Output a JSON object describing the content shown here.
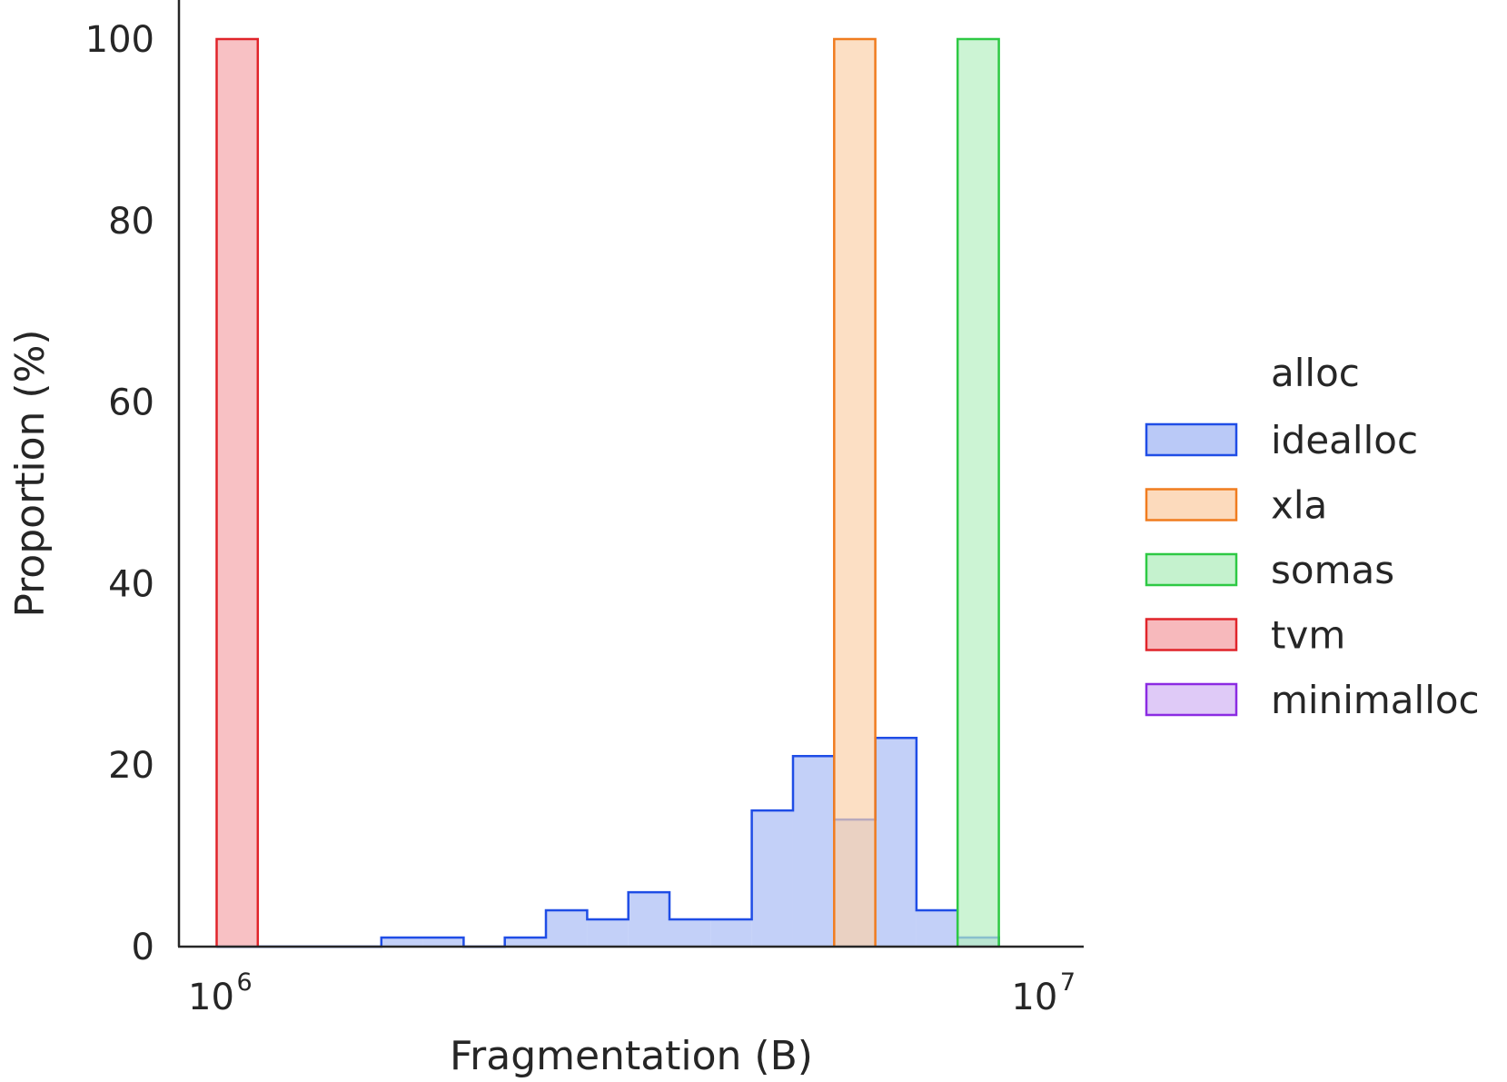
{
  "chart_data": {
    "type": "histogram",
    "xlabel": "Fragmentation (B)",
    "ylabel": "Proportion (%)",
    "xscale": "log",
    "xlim": [
      900000,
      11300000
    ],
    "ylim": [
      0,
      100
    ],
    "yticks": [
      0,
      20,
      40,
      60,
      80,
      100
    ],
    "xticks": [
      {
        "value": 1000000,
        "base": "10",
        "exp": "6"
      },
      {
        "value": 10000000,
        "base": "10",
        "exp": "7"
      }
    ],
    "grid": false,
    "legend": {
      "title": "alloc",
      "placement": "right-outside",
      "entries": [
        "idealloc",
        "xla",
        "somas",
        "tvm",
        "minimalloc"
      ]
    },
    "series": [
      {
        "name": "idealloc",
        "stroke": "#1f4de6",
        "fill": "#a9bcf5",
        "bins": [
          {
            "x0": 1000000,
            "x1": 1122018,
            "y": 0
          },
          {
            "x0": 1122018,
            "x1": 1258925,
            "y": 0
          },
          {
            "x0": 1258925,
            "x1": 1412538,
            "y": 0
          },
          {
            "x0": 1412538,
            "x1": 1584893,
            "y": 0
          },
          {
            "x0": 1584893,
            "x1": 1778279,
            "y": 1
          },
          {
            "x0": 1778279,
            "x1": 1995262,
            "y": 1
          },
          {
            "x0": 1995262,
            "x1": 2238721,
            "y": 0
          },
          {
            "x0": 2238721,
            "x1": 2511886,
            "y": 1
          },
          {
            "x0": 2511886,
            "x1": 2818383,
            "y": 4
          },
          {
            "x0": 2818383,
            "x1": 3162278,
            "y": 3
          },
          {
            "x0": 3162278,
            "x1": 3548134,
            "y": 6
          },
          {
            "x0": 3548134,
            "x1": 3981072,
            "y": 3
          },
          {
            "x0": 3981072,
            "x1": 4466836,
            "y": 3
          },
          {
            "x0": 4466836,
            "x1": 5011872,
            "y": 15
          },
          {
            "x0": 5011872,
            "x1": 5623413,
            "y": 21
          },
          {
            "x0": 5623413,
            "x1": 6309573,
            "y": 14
          },
          {
            "x0": 6309573,
            "x1": 7079458,
            "y": 23
          },
          {
            "x0": 7079458,
            "x1": 7943282,
            "y": 4
          },
          {
            "x0": 7943282,
            "x1": 8912509,
            "y": 1
          }
        ]
      },
      {
        "name": "xla",
        "stroke": "#f07c1f",
        "fill": "#fbd1ab",
        "bins": [
          {
            "x0": 5623413,
            "x1": 6309573,
            "y": 100
          }
        ]
      },
      {
        "name": "somas",
        "stroke": "#2ec944",
        "fill": "#b7efc2",
        "bins": [
          {
            "x0": 7943282,
            "x1": 8912509,
            "y": 100
          }
        ]
      },
      {
        "name": "tvm",
        "stroke": "#e0242a",
        "fill": "#f5a7ab",
        "bins": [
          {
            "x0": 1000000,
            "x1": 1122018,
            "y": 100
          }
        ]
      },
      {
        "name": "minimalloc",
        "stroke": "#8b2be2",
        "fill": "#d7bdf5",
        "bins": []
      }
    ]
  }
}
